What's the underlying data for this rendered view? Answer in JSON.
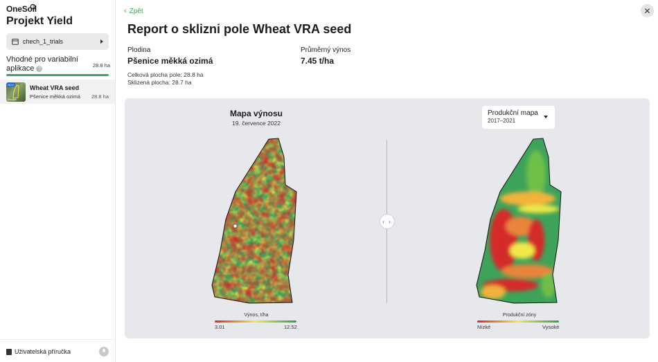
{
  "sidebar": {
    "brand": "OneSoil",
    "project_title": "Projekt Yield",
    "folder": "chech_1_trials",
    "section_title": "Vhodné pro variabilní aplikace",
    "section_area": "28.8 ha",
    "section_progress": 1.0,
    "field": {
      "name": "Wheat VRA seed",
      "crop": "Pšenice měkká ozimá",
      "area": "28.8 ha",
      "thumb_badge": "NDVI",
      "thumb_credit": "Google"
    },
    "footer_label": "Uživatelská příručka"
  },
  "header": {
    "back_label": "Zpět",
    "report_title": "Report o sklizni pole Wheat VRA seed"
  },
  "summary": {
    "crop_label": "Plodina",
    "crop_value": "Pšenice měkká ozimá",
    "yield_label": "Průměrný výnos",
    "yield_value": "7.45 t/ha",
    "total_area": "Celková plocha pole: 28.8 ha",
    "harvest_area": "Sklizená plocha: 28.7 ha"
  },
  "maps": {
    "left_title": "Mapa výnosu",
    "left_date": "19. července 2022",
    "left_legend_title": "Výnos, t/ha",
    "left_legend_min": "3.01",
    "left_legend_max": "12.52",
    "right_dropdown_name": "Produkční mapa",
    "right_dropdown_years": "2017–2021",
    "right_legend_title": "Produkční zóny",
    "right_legend_min": "Nízké",
    "right_legend_max": "Vysoké",
    "handle_glyph": "‹ ›",
    "colors": {
      "low": "#d42b2b",
      "mid": "#f2e84a",
      "high": "#2f9e4f"
    }
  },
  "close_glyph": "✕"
}
